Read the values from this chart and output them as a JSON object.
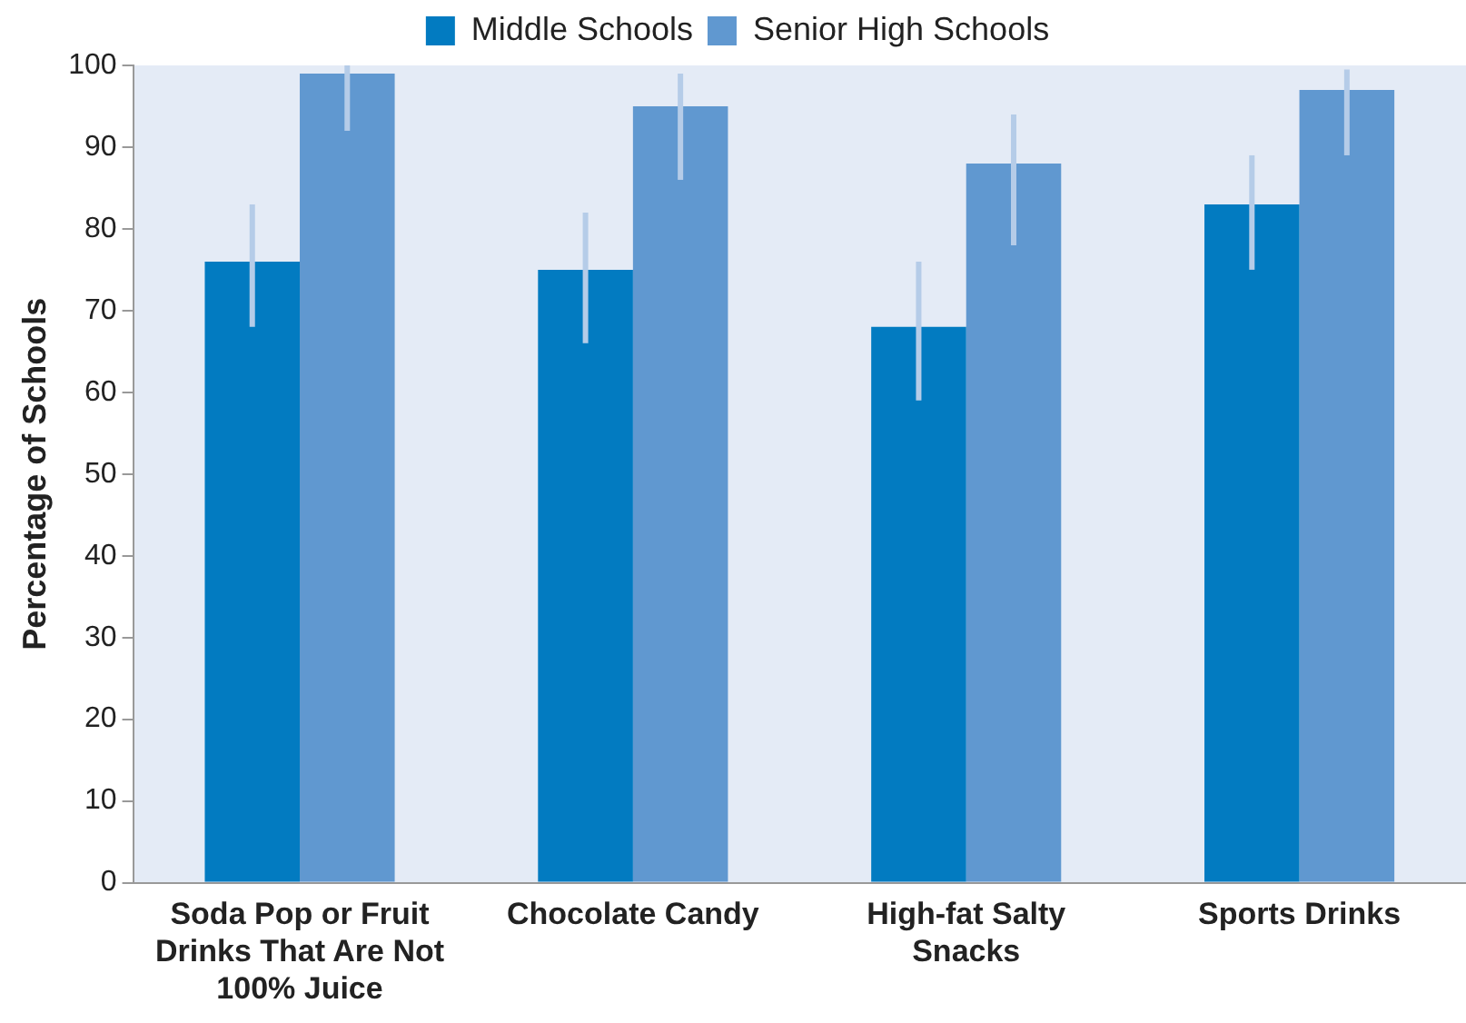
{
  "chart_data": {
    "type": "bar",
    "ylabel": "Percentage of Schools",
    "categories": [
      "Soda Pop or Fruit Drinks That Are Not 100% Juice",
      "Chocolate Candy",
      "High-fat Salty Snacks",
      "Sports Drinks"
    ],
    "series": [
      {
        "name": "Middle Schools",
        "color": "#027bc1",
        "values": [
          76,
          75,
          68,
          83
        ],
        "errors": [
          [
            68,
            83
          ],
          [
            66,
            82
          ],
          [
            59,
            76
          ],
          [
            75,
            89
          ]
        ]
      },
      {
        "name": "Senior High Schools",
        "color": "#6098d0",
        "values": [
          99,
          95,
          88,
          97
        ],
        "errors": [
          [
            92,
            100
          ],
          [
            86,
            99
          ],
          [
            78,
            94
          ],
          [
            89,
            99.5
          ]
        ]
      }
    ],
    "ylim": [
      0,
      100
    ],
    "yticks": [
      0,
      10,
      20,
      30,
      40,
      50,
      60,
      70,
      80,
      90,
      100
    ],
    "grid": false,
    "legend": "top"
  }
}
